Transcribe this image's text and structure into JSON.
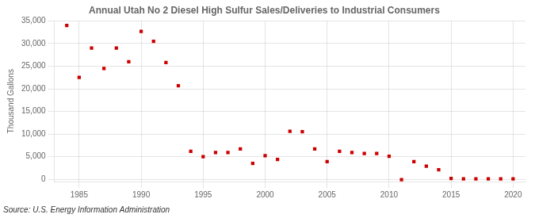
{
  "chart_data": {
    "type": "scatter",
    "title": "Annual Utah No 2 Diesel High Sulfur Sales/Deliveries to Industrial Consumers",
    "ylabel": "Thousand Gallons",
    "annotations": [
      "Source: U.S. Energy Information Administration"
    ],
    "color": "#cc0000",
    "marker": "square",
    "grid": true,
    "xlim": [
      1983,
      2021
    ],
    "ylim": [
      -500,
      35000
    ],
    "xticks": [
      1985,
      1990,
      1995,
      2000,
      2005,
      2010,
      2015,
      2020
    ],
    "yticks": [
      0,
      {
        "value": 5000,
        "label": "5,000"
      },
      {
        "value": 10000,
        "label": "10,000"
      },
      {
        "value": 15000,
        "label": "15,000"
      },
      {
        "value": 20000,
        "label": "20,000"
      },
      {
        "value": 25000,
        "label": "25,000"
      },
      {
        "value": 30000,
        "label": "30,000"
      },
      {
        "value": 35000,
        "label": "35,000"
      }
    ],
    "x": [
      1984,
      1985,
      1986,
      1987,
      1988,
      1989,
      1990,
      1991,
      1992,
      1993,
      1994,
      1995,
      1996,
      1997,
      1998,
      1999,
      2000,
      2001,
      2002,
      2003,
      2004,
      2005,
      2006,
      2007,
      2008,
      2009,
      2010,
      2011,
      2012,
      2013,
      2014,
      2015,
      2016,
      2017,
      2018,
      2019,
      2020
    ],
    "values": [
      34000,
      22500,
      29000,
      24500,
      29000,
      26000,
      32700,
      30500,
      25800,
      20700,
      6200,
      5000,
      5900,
      5900,
      6700,
      3500,
      5200,
      4400,
      10600,
      10500,
      6700,
      3900,
      6200,
      5900,
      5700,
      5700,
      5100,
      -100,
      3900,
      2900,
      2100,
      200,
      100,
      100,
      100,
      100,
      100
    ]
  }
}
